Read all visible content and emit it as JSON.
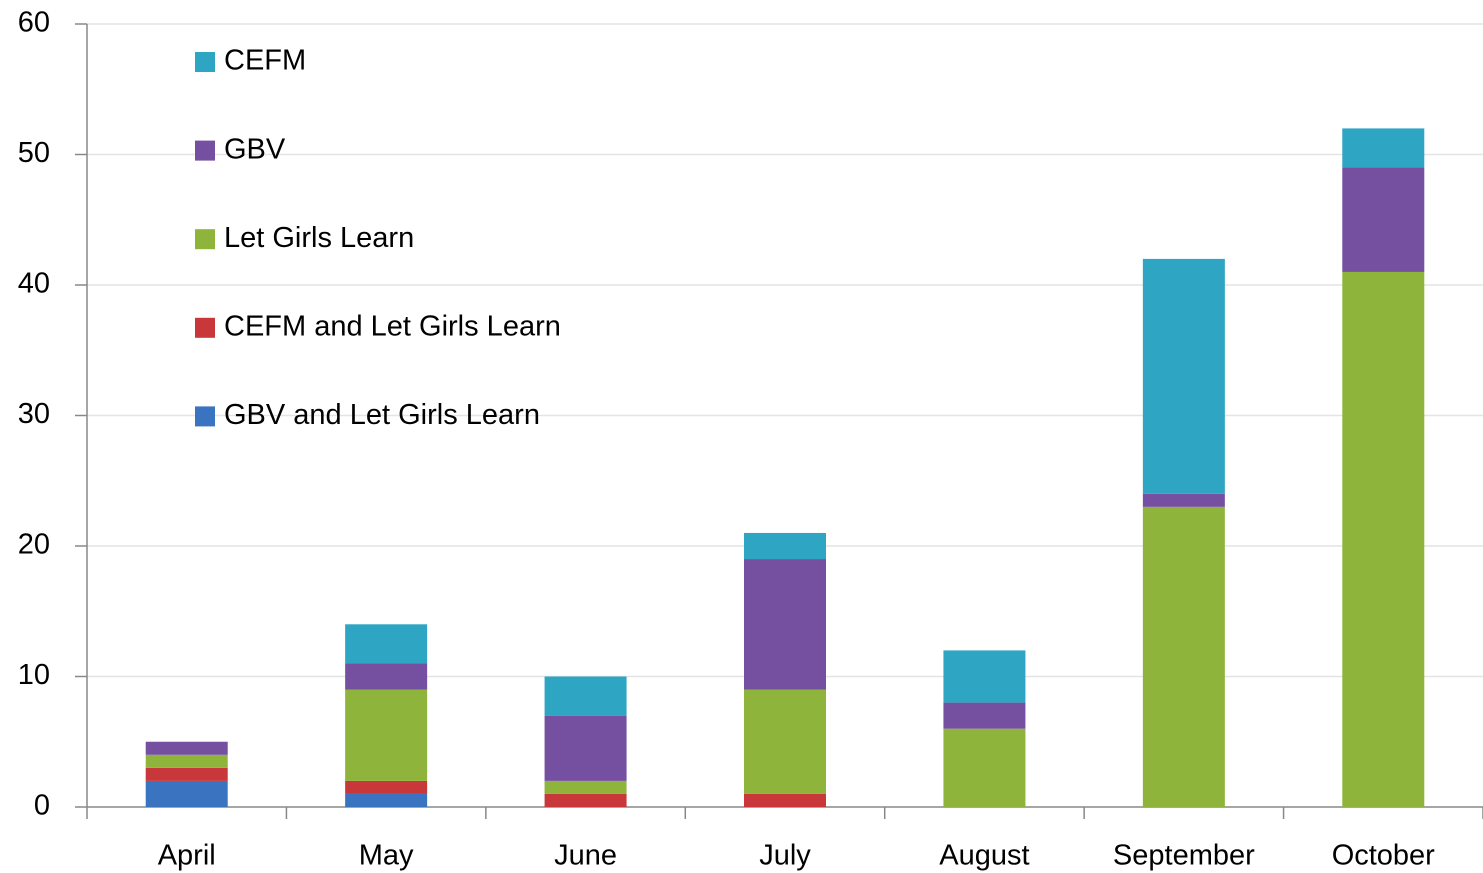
{
  "chart_data": {
    "type": "stacked_bar",
    "categories": [
      "April",
      "May",
      "June",
      "July",
      "August",
      "September",
      "October"
    ],
    "series": [
      {
        "name": "GBV and Let Girls Learn",
        "color": "#3a74c0",
        "values": [
          2,
          1,
          0,
          0,
          0,
          0,
          0
        ]
      },
      {
        "name": "CEFM and Let Girls Learn",
        "color": "#c8373a",
        "values": [
          1,
          1,
          1,
          1,
          0,
          0,
          0
        ]
      },
      {
        "name": "Let Girls Learn",
        "color": "#8fb43c",
        "values": [
          1,
          7,
          1,
          8,
          6,
          23,
          41
        ]
      },
      {
        "name": "GBV",
        "color": "#7550a0",
        "values": [
          1,
          2,
          5,
          10,
          2,
          1,
          8
        ]
      },
      {
        "name": "CEFM",
        "color": "#2fa5c4",
        "values": [
          0,
          3,
          3,
          2,
          4,
          18,
          3
        ]
      }
    ],
    "ylim": [
      0,
      60
    ],
    "yticks": [
      0,
      10,
      20,
      30,
      40,
      50,
      60
    ],
    "grid": true,
    "legend": "top-left"
  }
}
